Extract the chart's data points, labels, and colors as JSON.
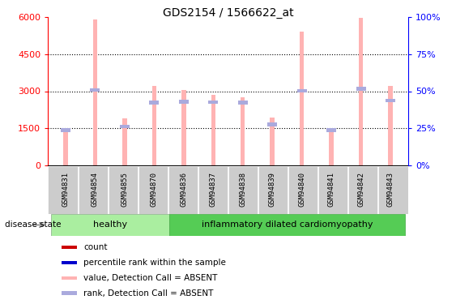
{
  "title": "GDS2154 / 1566622_at",
  "samples": [
    "GSM94831",
    "GSM94854",
    "GSM94855",
    "GSM94870",
    "GSM94836",
    "GSM94837",
    "GSM94838",
    "GSM94839",
    "GSM94840",
    "GSM94841",
    "GSM94842",
    "GSM94843"
  ],
  "values": [
    1450,
    5900,
    1900,
    3200,
    3050,
    2850,
    2750,
    1950,
    5400,
    1450,
    5950,
    3200
  ],
  "ranks": [
    1430,
    3050,
    1580,
    2550,
    2580,
    2560,
    2550,
    1660,
    3020,
    1430,
    3090,
    2620
  ],
  "ylim_left": [
    0,
    6000
  ],
  "ylim_right": [
    0,
    100
  ],
  "yticks_left": [
    0,
    1500,
    3000,
    4500,
    6000
  ],
  "yticks_right": [
    0,
    25,
    50,
    75,
    100
  ],
  "ytick_labels_right": [
    "0%",
    "25%",
    "50%",
    "75%",
    "100%"
  ],
  "healthy_count": 4,
  "healthy_label": "healthy",
  "disease_label": "inflammatory dilated cardiomyopathy",
  "disease_state_label": "disease state",
  "bar_color": "#FFB3B3",
  "rank_color": "#AAAADD",
  "count_color": "#CC0000",
  "percentile_color": "#0000CC",
  "healthy_bg": "#AAEEA0",
  "disease_bg": "#55CC55",
  "sample_bg": "#CCCCCC",
  "legend_items": [
    "count",
    "percentile rank within the sample",
    "value, Detection Call = ABSENT",
    "rank, Detection Call = ABSENT"
  ],
  "legend_colors": [
    "#CC0000",
    "#0000CC",
    "#FFB3B3",
    "#AAAADD"
  ]
}
